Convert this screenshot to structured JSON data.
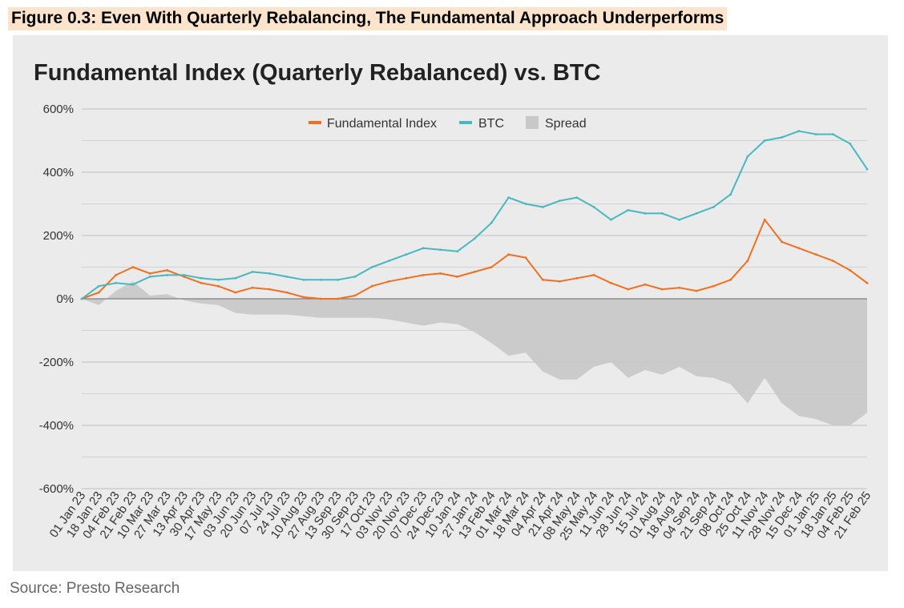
{
  "figure_title": "Figure 0.3: Even With Quarterly Rebalancing, The Fundamental Approach Underperforms",
  "source_text": "Source: Presto Research",
  "chart_data": {
    "type": "line",
    "title": "Fundamental Index (Quarterly Rebalanced) vs. BTC",
    "xlabel": "",
    "ylabel": "",
    "ylim": [
      -600,
      600
    ],
    "y_ticks": [
      600,
      400,
      200,
      0,
      -200,
      -400,
      -600
    ],
    "y_tick_labels": [
      "600%",
      "400%",
      "200%",
      "0%",
      "-200%",
      "-400%",
      "-600%"
    ],
    "grid": true,
    "legend_position": "top-center",
    "legend": [
      "Fundamental Index",
      "BTC",
      "Spread"
    ],
    "colors": {
      "fundamental": "#f07020",
      "btc": "#48b8c0",
      "spread": "#c8c8c8",
      "zero_line": "#808080",
      "grid": "#c8c8c8"
    },
    "x_tick_labels": [
      "01 Jan 23",
      "18 Jan 23",
      "04 Feb 23",
      "21 Feb 23",
      "10 Mar 23",
      "27 Mar 23",
      "13 Apr 23",
      "30 Apr 23",
      "17 May 23",
      "03 Jun 23",
      "20 Jun 23",
      "07 Jul 23",
      "24 Jul 23",
      "10 Aug 23",
      "27 Aug 23",
      "13 Sep 23",
      "30 Sep 23",
      "17 Oct 23",
      "03 Nov 23",
      "20 Nov 23",
      "07 Dec 23",
      "24 Dec 23",
      "10 Jan 24",
      "27 Jan 24",
      "13 Feb 24",
      "01 Mar 24",
      "18 Mar 24",
      "04 Apr 24",
      "21 Apr 24",
      "08 May 24",
      "25 May 24",
      "11 Jun 24",
      "28 Jun 24",
      "15 Jul 24",
      "01 Aug 24",
      "18 Aug 24",
      "04 Sep 24",
      "21 Sep 24",
      "08 Oct 24",
      "25 Oct 24",
      "11 Nov 24",
      "28 Nov 24",
      "15 Dec 24",
      "01 Jan 25",
      "18 Jan 25",
      "04 Feb 25",
      "21 Feb 25"
    ],
    "series": [
      {
        "name": "Fundamental Index",
        "key": "fundamental",
        "values": [
          0,
          20,
          75,
          100,
          80,
          90,
          70,
          50,
          40,
          20,
          35,
          30,
          20,
          5,
          0,
          0,
          10,
          40,
          55,
          65,
          75,
          80,
          70,
          85,
          100,
          140,
          130,
          60,
          55,
          65,
          75,
          50,
          30,
          45,
          30,
          35,
          25,
          40,
          60,
          120,
          250,
          180,
          160,
          140,
          120,
          90,
          50
        ]
      },
      {
        "name": "BTC",
        "key": "btc",
        "values": [
          0,
          40,
          50,
          45,
          70,
          75,
          75,
          65,
          60,
          65,
          85,
          80,
          70,
          60,
          60,
          60,
          70,
          100,
          120,
          140,
          160,
          155,
          150,
          190,
          240,
          320,
          300,
          290,
          310,
          320,
          290,
          250,
          280,
          270,
          270,
          250,
          270,
          290,
          330,
          450,
          500,
          510,
          530,
          520,
          520,
          490,
          410
        ]
      },
      {
        "name": "Spread",
        "key": "spread",
        "values": [
          0,
          -20,
          25,
          55,
          10,
          15,
          -5,
          -15,
          -20,
          -45,
          -50,
          -50,
          -50,
          -55,
          -60,
          -60,
          -60,
          -60,
          -65,
          -75,
          -85,
          -75,
          -80,
          -105,
          -140,
          -180,
          -170,
          -230,
          -255,
          -255,
          -215,
          -200,
          -250,
          -225,
          -240,
          -215,
          -245,
          -250,
          -270,
          -330,
          -250,
          -330,
          -370,
          -380,
          -400,
          -400,
          -360
        ]
      }
    ]
  }
}
